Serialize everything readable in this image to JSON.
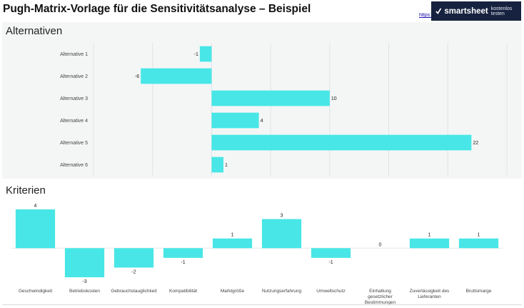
{
  "header": {
    "title": "Pugh-Matrix-Vorlage für die Sensitivitätsanalyse – Beispiel",
    "link_text": "https://",
    "banner_brand": "smartsheet",
    "banner_cta": "kostenlos testen"
  },
  "colors": {
    "bar": "#48e6e6",
    "grid": "#dfe3e5",
    "panel": "#f4f6f6",
    "banner": "#16223f"
  },
  "chart_data": [
    {
      "type": "bar",
      "orientation": "horizontal",
      "title": "Alternativen",
      "categories": [
        "Alternative 1",
        "Alternative 2",
        "Alternative 3",
        "Alternative 4",
        "Alternative 5",
        "Alternative 6"
      ],
      "values": [
        -1,
        -6,
        10,
        4,
        22,
        1
      ],
      "xlim": [
        -10,
        25
      ],
      "grid": true
    },
    {
      "type": "bar",
      "orientation": "vertical",
      "title": "Kriterien",
      "categories": [
        "Geschwindigkeit",
        "Betriebskosten",
        "Gebrauchstauglichkeit",
        "Kompatibilität",
        "Marktgröße",
        "Nutzungserfahrung",
        "Umweltschutz",
        "Einhaltung gesetzlicher Bestimmungen",
        "Zuverlässigkeit des Lieferanten",
        "Bruttomarge"
      ],
      "values": [
        4,
        -3,
        -2,
        -1,
        1,
        3,
        -1,
        0,
        1,
        1
      ],
      "ylim": [
        -3,
        4
      ],
      "grid": false
    }
  ]
}
